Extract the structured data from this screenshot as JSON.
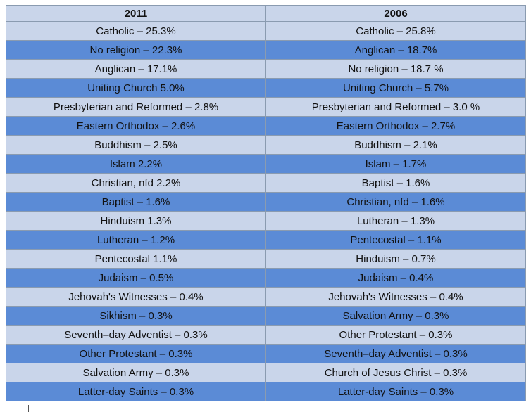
{
  "table": {
    "headers": [
      "2011",
      "2006"
    ],
    "rows": [
      [
        "Catholic – 25.3%",
        "Catholic – 25.8%"
      ],
      [
        "No religion – 22.3%",
        "Anglican – 18.7%"
      ],
      [
        "Anglican – 17.1%",
        "No religion – 18.7 %"
      ],
      [
        "Uniting Church 5.0%",
        "Uniting Church  – 5.7%"
      ],
      [
        "Presbyterian and Reformed –  2.8%",
        "Presbyterian and Reformed – 3.0 %"
      ],
      [
        "Eastern Orthodox – 2.6%",
        "Eastern Orthodox – 2.7%"
      ],
      [
        "Buddhism – 2.5%",
        "Buddhism – 2.1%"
      ],
      [
        "Islam 2.2%",
        "Islam – 1.7%"
      ],
      [
        "Christian, nfd 2.2%",
        "Baptist – 1.6%"
      ],
      [
        "Baptist – 1.6%",
        "Christian, nfd – 1.6%"
      ],
      [
        "Hinduism 1.3%",
        "Lutheran – 1.3%"
      ],
      [
        "Lutheran – 1.2%",
        "Pentecostal – 1.1%"
      ],
      [
        "Pentecostal 1.1%",
        "Hinduism – 0.7%"
      ],
      [
        "Judaism – 0.5%",
        "Judaism – 0.4%"
      ],
      [
        "Jehovah's Witnesses – 0.4%",
        "Jehovah's Witnesses – 0.4%"
      ],
      [
        "Sikhism – 0.3%",
        "Salvation Army – 0.3%"
      ],
      [
        "Seventh–day Adventist – 0.3%",
        "Other Protestant – 0.3%"
      ],
      [
        "Other Protestant – 0.3%",
        "Seventh–day Adventist – 0.3%"
      ],
      [
        "Salvation Army – 0.3%",
        "Church of Jesus Christ – 0.3%"
      ],
      [
        "Latter-day Saints – 0.3%",
        "Latter-day Saints – 0.3%"
      ]
    ]
  },
  "colors": {
    "header_bg": "#c9d5ea",
    "row_light": "#c9d5ea",
    "row_dark": "#5b8bd6",
    "border": "#8a9bb0",
    "text": "#111111"
  }
}
